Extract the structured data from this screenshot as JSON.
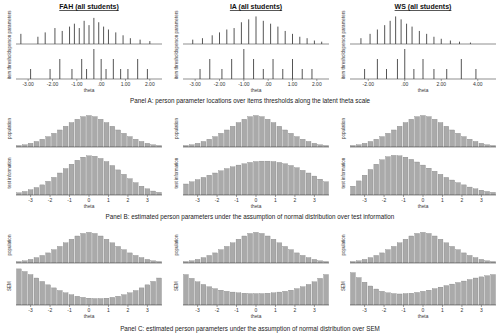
{
  "captions": [
    "Panel A: person parameter locations over items thresholds along the latent theta scale",
    "Panel B: estimated person parameters under the assumption of normal distribution over test information",
    "Panel C: estimated person parameters under the assumption of normal distribution over SEM"
  ],
  "chart_data": [
    {
      "type": "spike",
      "title": "FAH (all students)",
      "y_label": "person parameters",
      "color": "#555555",
      "tick_labels": false,
      "xlim": [
        -3.5,
        2.5
      ],
      "ylim": [
        0,
        100
      ],
      "x": [
        -3.3,
        -2.6,
        -2.3,
        -1.9,
        -1.6,
        -1.3,
        -1.1,
        -0.9,
        -0.7,
        -0.5,
        -0.3,
        -0.1,
        0.1,
        0.3,
        0.6,
        0.9,
        1.2,
        1.6,
        2.0
      ],
      "values": [
        35,
        25,
        40,
        55,
        45,
        60,
        70,
        55,
        80,
        65,
        90,
        75,
        60,
        50,
        40,
        30,
        20,
        15,
        10
      ]
    },
    {
      "type": "spike",
      "title": "IA (all students)",
      "y_label": "person parameters",
      "color": "#555555",
      "tick_labels": false,
      "xlim": [
        -3.5,
        2.5
      ],
      "ylim": [
        0,
        100
      ],
      "x": [
        -3.1,
        -2.7,
        -2.3,
        -2.0,
        -1.7,
        -1.4,
        -1.1,
        -0.8,
        -0.5,
        -0.2,
        0.1,
        0.4,
        0.7,
        1.0,
        1.3,
        1.6,
        1.9,
        2.2
      ],
      "values": [
        15,
        20,
        30,
        40,
        50,
        55,
        75,
        85,
        95,
        80,
        70,
        60,
        45,
        35,
        25,
        20,
        12,
        8
      ]
    },
    {
      "type": "spike",
      "title": "WS (all students)",
      "y_label": "person parameters",
      "color": "#555555",
      "tick_labels": false,
      "xlim": [
        -3,
        5
      ],
      "ylim": [
        0,
        100
      ],
      "x": [
        -2.4,
        -1.9,
        -1.5,
        -1.1,
        -0.8,
        -0.5,
        -0.2,
        0.1,
        0.4,
        0.8,
        1.2,
        1.6,
        2.0,
        2.5,
        3.0,
        3.6
      ],
      "values": [
        20,
        35,
        50,
        65,
        80,
        95,
        85,
        70,
        60,
        45,
        35,
        25,
        18,
        12,
        8,
        5
      ]
    },
    {
      "type": "spike",
      "y_label": "item thresholds",
      "x_label": "theta",
      "color": "#555555",
      "tick_labels": "x",
      "xlim": [
        -3.5,
        2.5
      ],
      "ylim": [
        0,
        3
      ],
      "xticks": [
        {
          "value": -3,
          "label": "-3.00"
        },
        {
          "value": -2,
          "label": "-2.00"
        },
        {
          "value": -1,
          "label": "-1.00"
        },
        {
          "value": 0,
          "label": ".00"
        },
        {
          "value": 1,
          "label": "1.00"
        },
        {
          "value": 2,
          "label": "2.00"
        }
      ],
      "x": [
        -2.9,
        -2.1,
        -1.7,
        -1.2,
        -0.8,
        -0.6,
        -0.3,
        0.0,
        0.2,
        0.5,
        0.8,
        1.1,
        1.5,
        1.9
      ],
      "values": [
        1,
        1,
        2,
        1,
        2,
        1,
        3,
        2,
        1,
        2,
        1,
        1,
        2,
        1
      ]
    },
    {
      "type": "spike",
      "y_label": "item thresholds",
      "x_label": "theta",
      "color": "#555555",
      "tick_labels": "x",
      "xlim": [
        -3.5,
        2.5
      ],
      "ylim": [
        0,
        3
      ],
      "xticks": [
        {
          "value": -3,
          "label": "-3.00"
        },
        {
          "value": -2,
          "label": "-2.00"
        },
        {
          "value": -1,
          "label": "-1.00"
        },
        {
          "value": 0,
          "label": ".00"
        },
        {
          "value": 1,
          "label": "1.00"
        },
        {
          "value": 2,
          "label": "2.00"
        }
      ],
      "x": [
        -2.8,
        -2.4,
        -1.9,
        -1.5,
        -1.0,
        -0.6,
        -0.2,
        0.2,
        0.6,
        1.0,
        1.4,
        1.8
      ],
      "values": [
        1,
        2,
        1,
        2,
        3,
        2,
        1,
        2,
        1,
        2,
        1,
        1
      ]
    },
    {
      "type": "spike",
      "y_label": "item thresholds",
      "x_label": "theta",
      "color": "#555555",
      "tick_labels": "x",
      "xlim": [
        -3,
        5
      ],
      "ylim": [
        0,
        3
      ],
      "xticks": [
        {
          "value": -2,
          "label": "-2.00"
        },
        {
          "value": 0,
          "label": ".00"
        },
        {
          "value": 2,
          "label": "2.00"
        },
        {
          "value": 4,
          "label": "4.00"
        }
      ],
      "x": [
        -2.2,
        -1.5,
        -1.0,
        -0.4,
        0.0,
        0.5,
        1.0,
        1.6,
        2.3,
        3.1,
        3.9
      ],
      "values": [
        1,
        2,
        1,
        2,
        3,
        1,
        2,
        1,
        1,
        2,
        1
      ]
    },
    {
      "type": "bar",
      "y_label": "population",
      "color": "#aaaaaa",
      "tick_labels": false,
      "xlim": [
        -3.75,
        3.75
      ],
      "ylim": [
        0,
        100
      ],
      "x": [
        -3.6,
        -3.3,
        -3.0,
        -2.7,
        -2.4,
        -2.1,
        -1.8,
        -1.5,
        -1.2,
        -0.9,
        -0.6,
        -0.3,
        0,
        0.3,
        0.6,
        0.9,
        1.2,
        1.5,
        1.8,
        2.1,
        2.4,
        2.7,
        3.0,
        3.3,
        3.6
      ],
      "values": [
        4,
        6,
        10,
        15,
        21,
        28,
        37,
        46,
        56,
        66,
        75,
        82,
        85,
        82,
        75,
        66,
        56,
        46,
        37,
        28,
        21,
        15,
        10,
        6,
        4
      ]
    },
    {
      "type": "bar",
      "y_label": "population",
      "color": "#aaaaaa",
      "tick_labels": false,
      "xlim": [
        -3.75,
        3.75
      ],
      "ylim": [
        0,
        100
      ],
      "x": [
        -3.6,
        -3.3,
        -3.0,
        -2.7,
        -2.4,
        -2.1,
        -1.8,
        -1.5,
        -1.2,
        -0.9,
        -0.6,
        -0.3,
        0,
        0.3,
        0.6,
        0.9,
        1.2,
        1.5,
        1.8,
        2.1,
        2.4,
        2.7,
        3.0,
        3.3,
        3.6
      ],
      "values": [
        4,
        6,
        10,
        15,
        21,
        28,
        37,
        46,
        56,
        66,
        75,
        82,
        85,
        82,
        75,
        66,
        56,
        46,
        37,
        28,
        21,
        15,
        10,
        6,
        4
      ]
    },
    {
      "type": "bar",
      "y_label": "population",
      "color": "#aaaaaa",
      "tick_labels": false,
      "xlim": [
        -3.75,
        3.75
      ],
      "ylim": [
        0,
        100
      ],
      "x": [
        -3.6,
        -3.3,
        -3.0,
        -2.7,
        -2.4,
        -2.1,
        -1.8,
        -1.5,
        -1.2,
        -0.9,
        -0.6,
        -0.3,
        0,
        0.3,
        0.6,
        0.9,
        1.2,
        1.5,
        1.8,
        2.1,
        2.4,
        2.7,
        3.0,
        3.3,
        3.6
      ],
      "values": [
        4,
        6,
        10,
        15,
        21,
        28,
        37,
        46,
        56,
        66,
        75,
        82,
        85,
        82,
        75,
        66,
        56,
        46,
        37,
        28,
        21,
        15,
        10,
        6,
        4
      ]
    },
    {
      "type": "bar",
      "y_label": "test information",
      "x_label": "theta",
      "color": "#aaaaaa",
      "tick_labels": "x",
      "xlim": [
        -3.75,
        3.75
      ],
      "ylim": [
        0,
        100
      ],
      "xticks": [
        -3,
        -2,
        -1,
        0,
        1,
        2,
        3
      ],
      "x": [
        -3.6,
        -3.3,
        -3.0,
        -2.7,
        -2.4,
        -2.1,
        -1.8,
        -1.5,
        -1.2,
        -0.9,
        -0.6,
        -0.3,
        0,
        0.3,
        0.6,
        0.9,
        1.2,
        1.5,
        1.8,
        2.1,
        2.4,
        2.7,
        3.0,
        3.3,
        3.6
      ],
      "values": [
        5,
        8,
        12,
        17,
        23,
        31,
        40,
        50,
        60,
        70,
        79,
        86,
        89,
        88,
        83,
        76,
        67,
        57,
        47,
        37,
        28,
        20,
        14,
        9,
        6
      ]
    },
    {
      "type": "bar",
      "y_label": "test information",
      "x_label": "theta",
      "color": "#aaaaaa",
      "tick_labels": "x",
      "xlim": [
        -3.75,
        3.75
      ],
      "ylim": [
        0,
        100
      ],
      "xticks": [
        -3,
        -2,
        -1,
        0,
        1,
        2,
        3
      ],
      "x": [
        -3.6,
        -3.3,
        -3.0,
        -2.7,
        -2.4,
        -2.1,
        -1.8,
        -1.5,
        -1.2,
        -0.9,
        -0.6,
        -0.3,
        0,
        0.3,
        0.6,
        0.9,
        1.2,
        1.5,
        1.8,
        2.1,
        2.4,
        2.7,
        3.0,
        3.3,
        3.6
      ],
      "values": [
        25,
        30,
        35,
        40,
        45,
        50,
        55,
        60,
        64,
        68,
        71,
        74,
        76,
        77,
        77,
        76,
        74,
        71,
        67,
        62,
        56,
        50,
        43,
        36,
        30
      ]
    },
    {
      "type": "bar",
      "y_label": "test information",
      "x_label": "theta",
      "color": "#aaaaaa",
      "tick_labels": "x",
      "xlim": [
        -3.75,
        3.75
      ],
      "ylim": [
        0,
        100
      ],
      "xticks": [
        -3,
        -2,
        -1,
        0,
        1,
        2,
        3
      ],
      "x": [
        -3.6,
        -3.3,
        -3.0,
        -2.7,
        -2.4,
        -2.1,
        -1.8,
        -1.5,
        -1.2,
        -0.9,
        -0.6,
        -0.3,
        0,
        0.3,
        0.6,
        0.9,
        1.2,
        1.5,
        1.8,
        2.1,
        2.4,
        2.7,
        3.0,
        3.3,
        3.6
      ],
      "values": [
        20,
        32,
        45,
        58,
        70,
        80,
        87,
        90,
        89,
        86,
        81,
        75,
        68,
        61,
        54,
        47,
        40,
        34,
        28,
        23,
        18,
        14,
        11,
        8,
        6
      ]
    },
    {
      "type": "bar",
      "y_label": "population",
      "color": "#aaaaaa",
      "tick_labels": false,
      "xlim": [
        -3.75,
        3.75
      ],
      "ylim": [
        0,
        100
      ],
      "x": [
        -3.6,
        -3.3,
        -3.0,
        -2.7,
        -2.4,
        -2.1,
        -1.8,
        -1.5,
        -1.2,
        -0.9,
        -0.6,
        -0.3,
        0,
        0.3,
        0.6,
        0.9,
        1.2,
        1.5,
        1.8,
        2.1,
        2.4,
        2.7,
        3.0,
        3.3,
        3.6
      ],
      "values": [
        4,
        6,
        10,
        15,
        21,
        28,
        37,
        46,
        56,
        66,
        75,
        82,
        85,
        82,
        75,
        66,
        56,
        46,
        37,
        28,
        21,
        15,
        10,
        6,
        4
      ]
    },
    {
      "type": "bar",
      "y_label": "population",
      "color": "#aaaaaa",
      "tick_labels": false,
      "xlim": [
        -3.75,
        3.75
      ],
      "ylim": [
        0,
        100
      ],
      "x": [
        -3.6,
        -3.3,
        -3.0,
        -2.7,
        -2.4,
        -2.1,
        -1.8,
        -1.5,
        -1.2,
        -0.9,
        -0.6,
        -0.3,
        0,
        0.3,
        0.6,
        0.9,
        1.2,
        1.5,
        1.8,
        2.1,
        2.4,
        2.7,
        3.0,
        3.3,
        3.6
      ],
      "values": [
        4,
        6,
        10,
        15,
        21,
        28,
        37,
        46,
        56,
        66,
        75,
        82,
        85,
        82,
        75,
        66,
        56,
        46,
        37,
        28,
        21,
        15,
        10,
        6,
        4
      ]
    },
    {
      "type": "bar",
      "y_label": "population",
      "color": "#aaaaaa",
      "tick_labels": false,
      "xlim": [
        -3.75,
        3.75
      ],
      "ylim": [
        0,
        100
      ],
      "x": [
        -3.6,
        -3.3,
        -3.0,
        -2.7,
        -2.4,
        -2.1,
        -1.8,
        -1.5,
        -1.2,
        -0.9,
        -0.6,
        -0.3,
        0,
        0.3,
        0.6,
        0.9,
        1.2,
        1.5,
        1.8,
        2.1,
        2.4,
        2.7,
        3.0,
        3.3,
        3.6
      ],
      "values": [
        4,
        6,
        10,
        15,
        21,
        28,
        37,
        46,
        56,
        66,
        75,
        82,
        85,
        82,
        75,
        66,
        56,
        46,
        37,
        28,
        21,
        15,
        10,
        6,
        4
      ]
    },
    {
      "type": "bar",
      "y_label": "SEM",
      "x_label": "theta",
      "color": "#aaaaaa",
      "tick_labels": "x",
      "xlim": [
        -3.75,
        3.75
      ],
      "ylim": [
        0,
        100
      ],
      "xticks": [
        -3,
        -2,
        -1,
        0,
        1,
        2,
        3
      ],
      "x": [
        -3.6,
        -3.3,
        -3.0,
        -2.7,
        -2.4,
        -2.1,
        -1.8,
        -1.5,
        -1.2,
        -0.9,
        -0.6,
        -0.3,
        0,
        0.3,
        0.6,
        0.9,
        1.2,
        1.5,
        1.8,
        2.1,
        2.4,
        2.7,
        3.0,
        3.3,
        3.6
      ],
      "values": [
        95,
        88,
        80,
        71,
        62,
        53,
        45,
        38,
        32,
        27,
        23,
        20,
        18,
        17,
        17,
        18,
        20,
        23,
        27,
        32,
        38,
        45,
        53,
        62,
        71
      ]
    },
    {
      "type": "bar",
      "y_label": "SEM",
      "x_label": "theta",
      "color": "#aaaaaa",
      "tick_labels": "x",
      "xlim": [
        -3.75,
        3.75
      ],
      "ylim": [
        0,
        100
      ],
      "xticks": [
        -3,
        -2,
        -1,
        0,
        1,
        2,
        3
      ],
      "x": [
        -3.6,
        -3.3,
        -3.0,
        -2.7,
        -2.4,
        -2.1,
        -1.8,
        -1.5,
        -1.2,
        -0.9,
        -0.6,
        -0.3,
        0,
        0.3,
        0.6,
        0.9,
        1.2,
        1.5,
        1.8,
        2.1,
        2.4,
        2.7,
        3.0,
        3.3,
        3.6
      ],
      "values": [
        80,
        70,
        61,
        54,
        48,
        43,
        39,
        36,
        34,
        32,
        31,
        30,
        30,
        30,
        31,
        32,
        34,
        36,
        39,
        43,
        48,
        54,
        61,
        70,
        80
      ]
    },
    {
      "type": "bar",
      "y_label": "SEM",
      "x_label": "theta",
      "color": "#aaaaaa",
      "tick_labels": "x",
      "xlim": [
        -3.75,
        3.75
      ],
      "ylim": [
        0,
        100
      ],
      "xticks": [
        -3,
        -2,
        -1,
        0,
        1,
        2,
        3
      ],
      "x": [
        -3.6,
        -3.3,
        -3.0,
        -2.7,
        -2.4,
        -2.1,
        -1.8,
        -1.5,
        -1.2,
        -0.9,
        -0.6,
        -0.3,
        0,
        0.3,
        0.6,
        0.9,
        1.2,
        1.5,
        1.8,
        2.1,
        2.4,
        2.7,
        3.0,
        3.3,
        3.6
      ],
      "values": [
        85,
        72,
        60,
        50,
        42,
        36,
        32,
        30,
        29,
        30,
        31,
        33,
        36,
        39,
        43,
        47,
        51,
        55,
        59,
        63,
        67,
        71,
        74,
        77,
        80
      ]
    }
  ]
}
